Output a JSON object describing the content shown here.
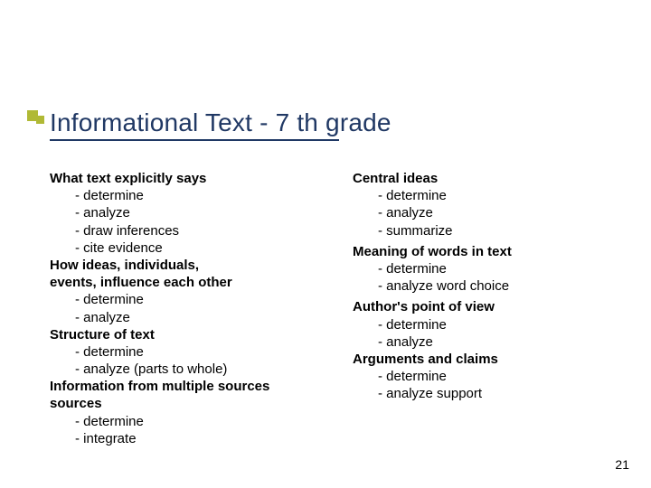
{
  "title": "Informational Text - 7 th grade",
  "title_color": "#203864",
  "title_fontsize": 28,
  "underline_color": "#1f3864",
  "accent_color": "#b0b935",
  "background_color": "#ffffff",
  "page_number": "21",
  "left_column": [
    {
      "type": "heading",
      "text": "What text explicitly says"
    },
    {
      "type": "item",
      "text": "- determine"
    },
    {
      "type": "item",
      "text": "- analyze"
    },
    {
      "type": "item",
      "text": "- draw inferences"
    },
    {
      "type": "item",
      "text": "- cite evidence"
    },
    {
      "type": "heading",
      "text": "How ideas, individuals,"
    },
    {
      "type": "heading",
      "text": "events, influence each other"
    },
    {
      "type": "item",
      "text": "- determine"
    },
    {
      "type": "item",
      "text": "- analyze"
    },
    {
      "type": "heading",
      "text": "Structure of text"
    },
    {
      "type": "item",
      "text": "- determine"
    },
    {
      "type": "item",
      "text": "- analyze (parts to whole)"
    },
    {
      "type": "heading",
      "text": "Information from multiple sources"
    },
    {
      "type": "heading",
      "text": "sources"
    },
    {
      "type": "item",
      "text": "- determine"
    },
    {
      "type": "item",
      "text": "- integrate"
    }
  ],
  "right_column": [
    {
      "type": "heading",
      "text": "Central ideas"
    },
    {
      "type": "item",
      "text": "- determine"
    },
    {
      "type": "item",
      "text": "- analyze"
    },
    {
      "type": "item",
      "text": "- summarize"
    },
    {
      "type": "spacer",
      "text": ""
    },
    {
      "type": "heading",
      "text": "Meaning of words in text"
    },
    {
      "type": "item",
      "text": "- determine"
    },
    {
      "type": "item",
      "text": "- analyze word choice"
    },
    {
      "type": "spacer",
      "text": ""
    },
    {
      "type": "heading",
      "text": "Author's point of view"
    },
    {
      "type": "item",
      "text": "- determine"
    },
    {
      "type": "item",
      "text": "- analyze"
    },
    {
      "type": "heading",
      "text": "Arguments and claims"
    },
    {
      "type": "item",
      "text": "- determine"
    },
    {
      "type": "item",
      "text": "- analyze support"
    }
  ]
}
